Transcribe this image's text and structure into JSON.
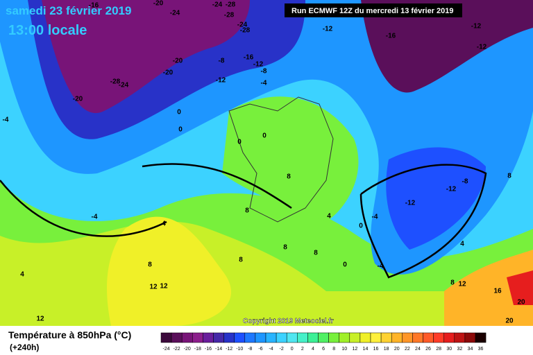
{
  "header": {
    "date": "samedi 23 février 2019",
    "time": "13:00 locale",
    "run": "Run ECMWF 12Z du mercredi 13 février 2019"
  },
  "copyright": "Copyright 2019 Meteociel.fr",
  "legend": {
    "title": "Température à 850hPa (°C)",
    "lead": "(+240h)",
    "ticks": [
      -24,
      -22,
      -20,
      -18,
      -16,
      -14,
      -12,
      -10,
      -8,
      -6,
      -4,
      -2,
      0,
      2,
      4,
      6,
      8,
      10,
      12,
      14,
      16,
      18,
      20,
      22,
      24,
      26,
      28,
      30,
      32,
      34,
      36
    ],
    "colors": [
      "#3c0a3c",
      "#5a0f5a",
      "#781478",
      "#8c1e8c",
      "#6a1e9c",
      "#4628a8",
      "#2832c8",
      "#1e50ff",
      "#1e78ff",
      "#1e96ff",
      "#28b4ff",
      "#3cd2ff",
      "#50e6f0",
      "#46f0c8",
      "#3cf096",
      "#50f064",
      "#78f03c",
      "#a0f028",
      "#c8f028",
      "#f0f028",
      "#fff03c",
      "#ffd232",
      "#ffb428",
      "#ff9628",
      "#ff7828",
      "#ff5a28",
      "#ff3c28",
      "#e61e1e",
      "#be1414",
      "#8c0a0a",
      "#1a0000"
    ]
  },
  "contour_labels": [
    -16,
    -20,
    -24,
    -24,
    -28,
    -28,
    -24,
    -28,
    -20,
    -16,
    -8,
    -12,
    -8,
    -20,
    -28,
    -24,
    -20,
    -12,
    -4,
    -12,
    -16,
    -12,
    -12,
    -4,
    0,
    0,
    0,
    0,
    -4,
    4,
    8,
    8,
    -12,
    -8,
    -12,
    8,
    0,
    -4,
    4,
    8,
    8,
    8,
    0,
    -4,
    4,
    8,
    12,
    8,
    4,
    12,
    12,
    16,
    20,
    12,
    20
  ]
}
